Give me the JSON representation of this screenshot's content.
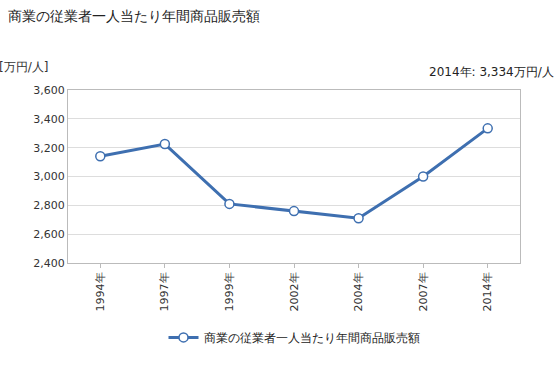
{
  "chart_data": {
    "type": "line",
    "title": "商業の従業者一人当たり年間商品販売額",
    "y_label": "[万円/人]",
    "annotations": [
      "2014年: 3,334万円/人"
    ],
    "categories": [
      "1994年",
      "1997年",
      "1999年",
      "2002年",
      "2004年",
      "2007年",
      "2014年"
    ],
    "series": [
      {
        "name": "商業の従業者一人当たり年間商品販売額",
        "color": "#3e6fb0",
        "marker": "circle",
        "line_style": "solid",
        "values": [
          3140,
          3225,
          2810,
          2760,
          2710,
          3000,
          3334
        ]
      }
    ],
    "ylim": [
      2400,
      3600
    ],
    "yticks": [
      {
        "value": 2400,
        "label": "2,400"
      },
      {
        "value": 2600,
        "label": "2,600"
      },
      {
        "value": 2800,
        "label": "2,800"
      },
      {
        "value": 3000,
        "label": "3,000"
      },
      {
        "value": 3200,
        "label": "3,200"
      },
      {
        "value": 3400,
        "label": "3,400"
      },
      {
        "value": 3600,
        "label": "3,600"
      }
    ],
    "grid": true,
    "legend": "bottom"
  }
}
